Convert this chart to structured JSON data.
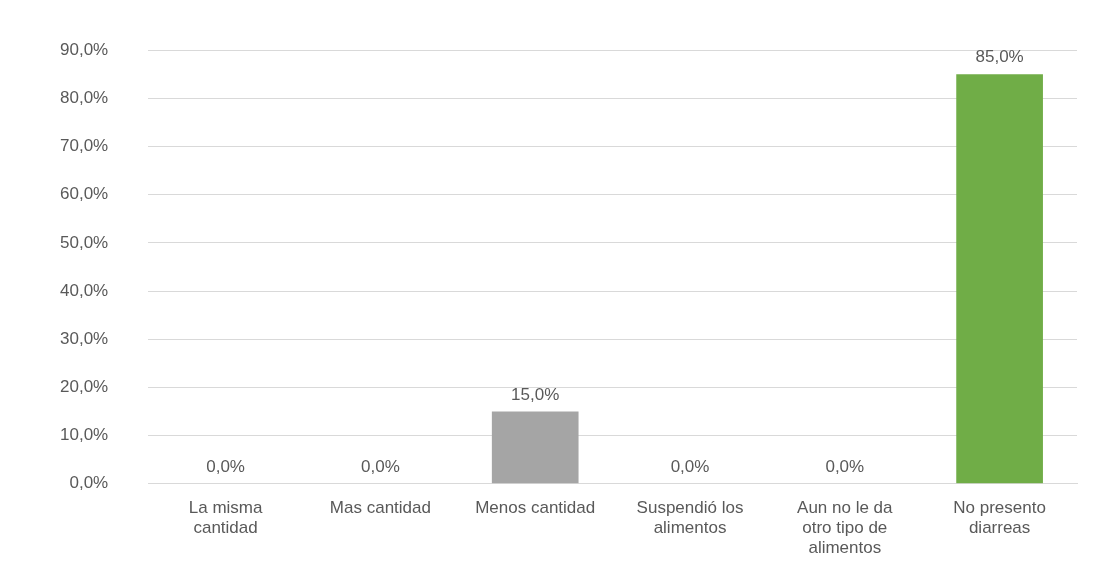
{
  "chart_data": {
    "type": "bar",
    "categories": [
      "La misma cantidad",
      "Mas cantidad",
      "Menos cantidad",
      "Suspendió los alimentos",
      "Aun no le da otro tipo de alimentos",
      "No presento diarreas"
    ],
    "values": [
      0,
      0,
      15,
      0,
      0,
      85
    ],
    "colors": [
      "#4472c4",
      "#ed7d31",
      "#a5a5a5",
      "#ffc000",
      "#5b9bd5",
      "#70ad47"
    ],
    "value_labels": [
      "0,0%",
      "0,0%",
      "15,0%",
      "0,0%",
      "0,0%",
      "85,0%"
    ],
    "ylim": [
      0,
      90
    ],
    "yticks": [
      {
        "value": 0,
        "label": "0,0%"
      },
      {
        "value": 10,
        "label": "10,0%"
      },
      {
        "value": 20,
        "label": "20,0%"
      },
      {
        "value": 30,
        "label": "30,0%"
      },
      {
        "value": 40,
        "label": "40,0%"
      },
      {
        "value": 50,
        "label": "50,0%"
      },
      {
        "value": 60,
        "label": "60,0%"
      },
      {
        "value": 70,
        "label": "70,0%"
      },
      {
        "value": 80,
        "label": "80,0%"
      },
      {
        "value": 90,
        "label": "90,0%"
      }
    ],
    "grid": "y",
    "legend": false
  }
}
